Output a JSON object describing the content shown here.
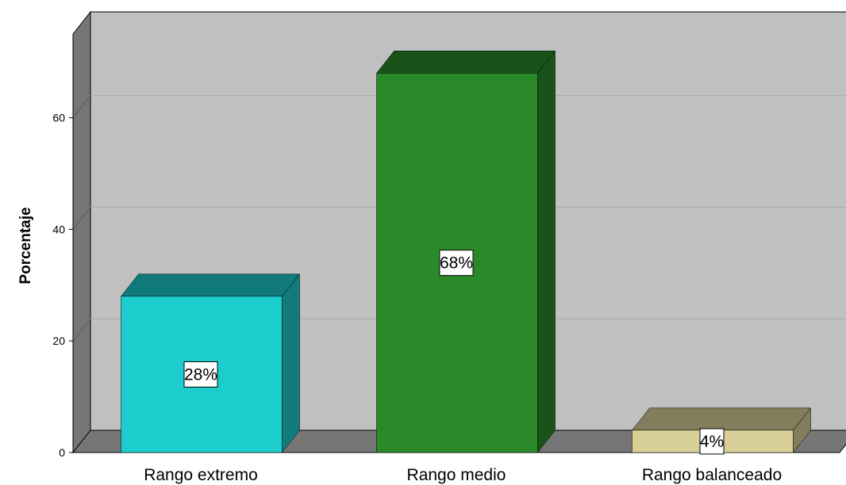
{
  "chart_data": {
    "type": "bar",
    "style": "3d",
    "title": "",
    "xlabel": "",
    "ylabel": "Porcentaje",
    "ylim": [
      0,
      75
    ],
    "yticks": [
      0,
      20,
      40,
      60
    ],
    "grid": true,
    "categories": [
      "Rango extremo",
      "Rango medio",
      "Rango balanceado"
    ],
    "values": [
      28,
      68,
      4
    ],
    "data_labels": [
      "28%",
      "68%",
      "4%"
    ],
    "colors": [
      "#1ccdcd",
      "#2a8a2a",
      "#d8d096"
    ],
    "background_color": "#c0c0c0",
    "floor_color": "#767676"
  }
}
